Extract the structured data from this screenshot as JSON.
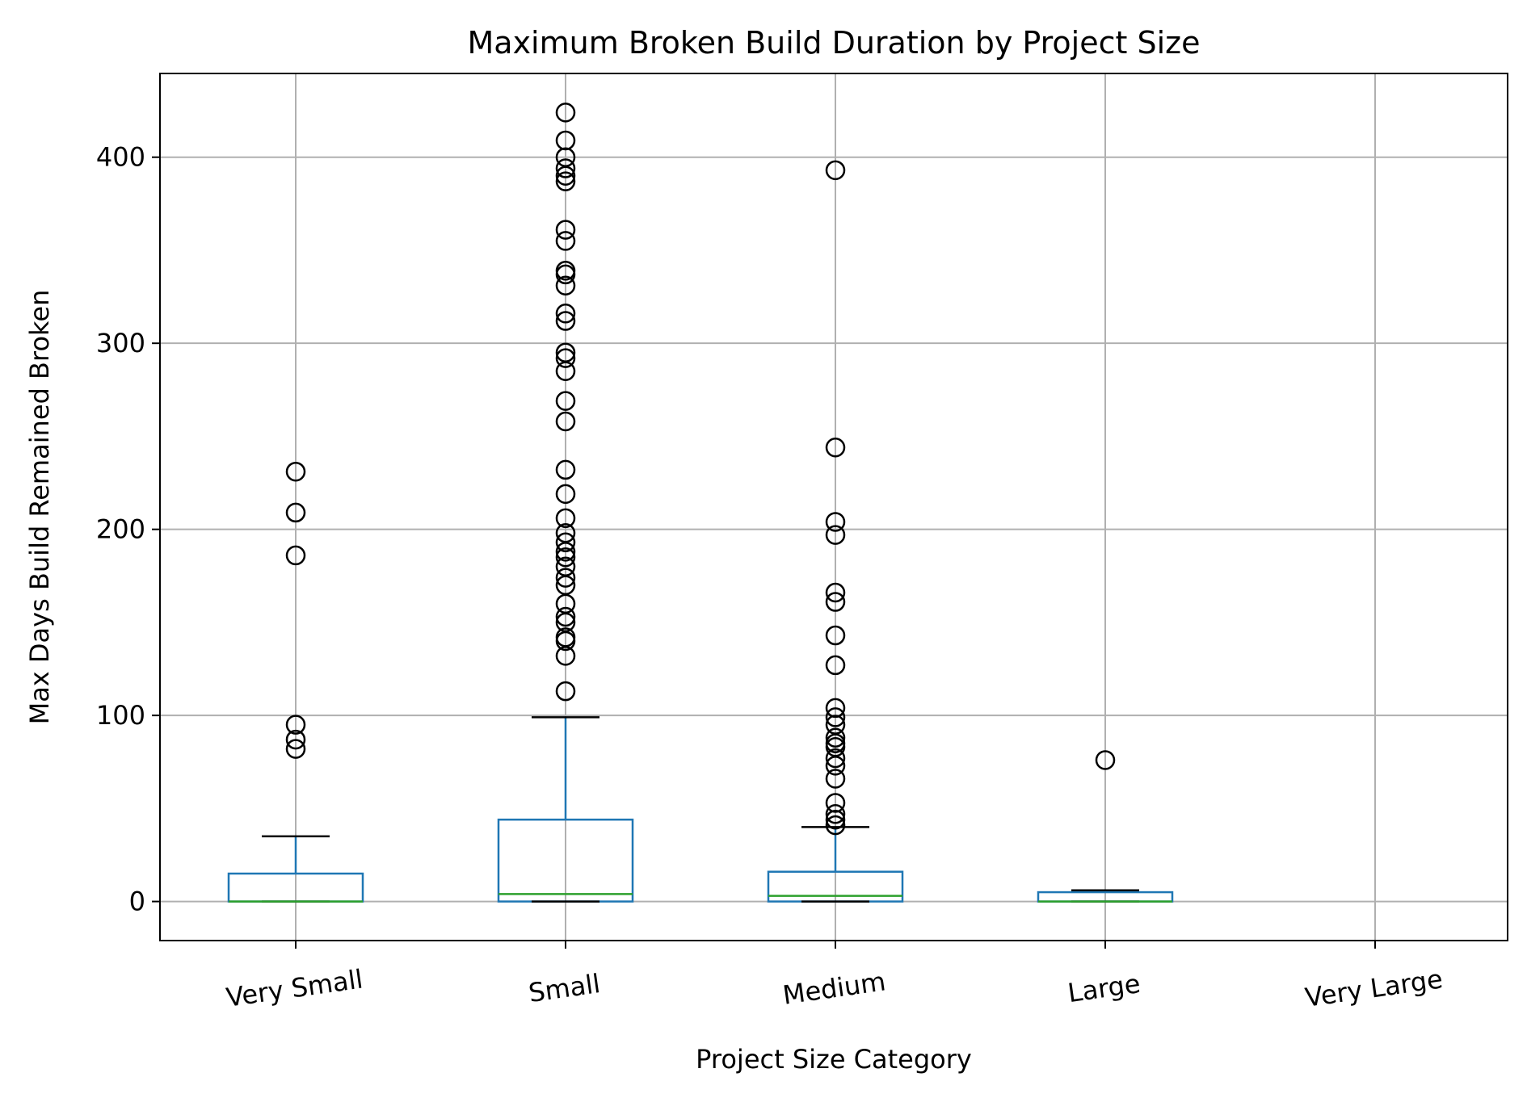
{
  "chart_data": {
    "type": "box",
    "title": "Maximum Broken Build Duration by Project Size",
    "xlabel": "Project Size Category",
    "ylabel": "Max Days Build Remained Broken",
    "ylim": [
      -21,
      445
    ],
    "yticks": [
      0,
      100,
      200,
      300,
      400
    ],
    "grid": true,
    "categories": [
      "Very Small",
      "Small",
      "Medium",
      "Large",
      "Very Large"
    ],
    "boxes": [
      {
        "category": "Very Small",
        "whisker_low": 0,
        "q1": 0,
        "median": 0,
        "q3": 15,
        "whisker_high": 35,
        "outliers": [
          82,
          87,
          95,
          186,
          209,
          231
        ]
      },
      {
        "category": "Small",
        "whisker_low": 0,
        "q1": 0,
        "median": 4,
        "q3": 44,
        "whisker_high": 99,
        "outliers": [
          113,
          132,
          140,
          142,
          150,
          153,
          160,
          170,
          174,
          180,
          185,
          188,
          193,
          198,
          206,
          219,
          232,
          258,
          269,
          285,
          292,
          295,
          312,
          316,
          331,
          337,
          339,
          355,
          361,
          387,
          390,
          394,
          400,
          409,
          424
        ]
      },
      {
        "category": "Medium",
        "whisker_low": 0,
        "q1": 0,
        "median": 3,
        "q3": 16,
        "whisker_high": 40,
        "outliers": [
          41,
          44,
          47,
          53,
          66,
          73,
          77,
          83,
          85,
          88,
          95,
          99,
          104,
          127,
          143,
          161,
          166,
          197,
          204,
          244,
          393
        ]
      },
      {
        "category": "Large",
        "whisker_low": 0,
        "q1": 0,
        "median": 0,
        "q3": 5,
        "whisker_high": 6,
        "outliers": [
          76
        ]
      },
      {
        "category": "Very Large"
      }
    ],
    "colors": {
      "box": "#1f77b4",
      "median": "#2ca02c",
      "whisker_cap": "#000000",
      "grid": "#b0b0b0",
      "outlier": "#000000",
      "frame": "#000000"
    }
  }
}
